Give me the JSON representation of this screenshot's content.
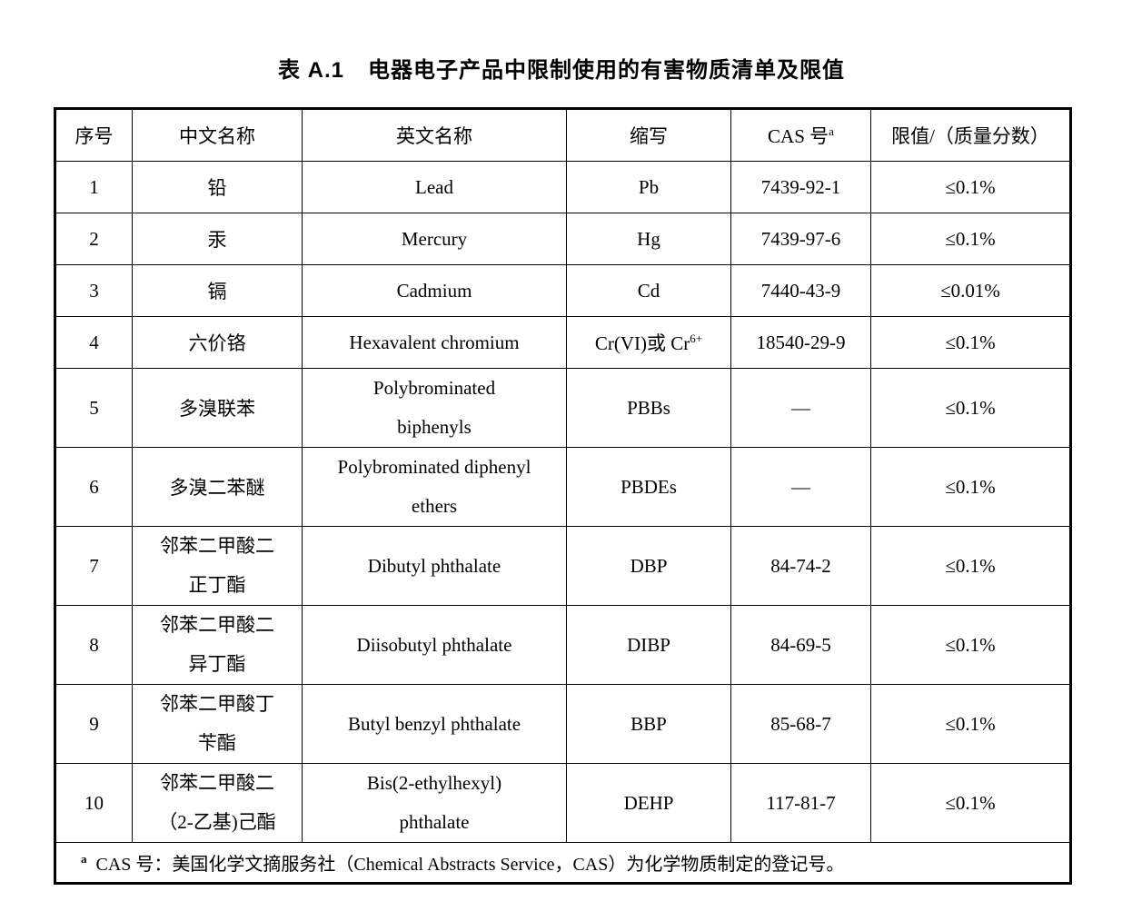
{
  "page": {
    "title_label": "表 A.1",
    "title_text": "电器电子产品中限制使用的有害物质清单及限值"
  },
  "table": {
    "headers": [
      "序号",
      "中文名称",
      "英文名称",
      "缩写",
      "CAS 号",
      "限值/（质量分数）"
    ],
    "cas_header_superscript": "a",
    "rows": [
      {
        "no": "1",
        "cn": [
          "铅"
        ],
        "en": [
          "Lead"
        ],
        "abbr": "Pb",
        "cas": "7439-92-1",
        "limit": "≤0.1%"
      },
      {
        "no": "2",
        "cn": [
          "汞"
        ],
        "en": [
          "Mercury"
        ],
        "abbr": "Hg",
        "cas": "7439-97-6",
        "limit": "≤0.1%"
      },
      {
        "no": "3",
        "cn": [
          "镉"
        ],
        "en": [
          "Cadmium"
        ],
        "abbr": "Cd",
        "cas": "7440-43-9",
        "limit": "≤0.01%"
      },
      {
        "no": "4",
        "cn": [
          "六价铬"
        ],
        "en": [
          "Hexavalent chromium"
        ],
        "abbr": "Cr(VI)或 Cr",
        "abbr_superscript": "6+",
        "cas": "18540-29-9",
        "limit": "≤0.1%"
      },
      {
        "no": "5",
        "cn": [
          "多溴联苯"
        ],
        "en": [
          "Polybrominated",
          "biphenyls"
        ],
        "abbr": "PBBs",
        "cas": "—",
        "limit": "≤0.1%"
      },
      {
        "no": "6",
        "cn": [
          "多溴二苯醚"
        ],
        "en": [
          "Polybrominated diphenyl",
          "ethers"
        ],
        "abbr": "PBDEs",
        "cas": "—",
        "limit": "≤0.1%"
      },
      {
        "no": "7",
        "cn": [
          "邻苯二甲酸二",
          "正丁酯"
        ],
        "en": [
          "Dibutyl phthalate"
        ],
        "abbr": "DBP",
        "cas": "84-74-2",
        "limit": "≤0.1%"
      },
      {
        "no": "8",
        "cn": [
          "邻苯二甲酸二",
          "异丁酯"
        ],
        "en": [
          "Diisobutyl phthalate"
        ],
        "abbr": "DIBP",
        "cas": "84-69-5",
        "limit": "≤0.1%"
      },
      {
        "no": "9",
        "cn": [
          "邻苯二甲酸丁",
          "苄酯"
        ],
        "en": [
          "Butyl benzyl phthalate"
        ],
        "abbr": "BBP",
        "cas": "85-68-7",
        "limit": "≤0.1%"
      },
      {
        "no": "10",
        "cn": [
          "邻苯二甲酸二",
          "（2-乙基)己酯"
        ],
        "en": [
          "Bis(2-ethylhexyl)",
          "phthalate"
        ],
        "abbr": "DEHP",
        "cas": "117-81-7",
        "limit": "≤0.1%"
      }
    ],
    "footnote_marker": "a",
    "footnote_text": "CAS 号：美国化学文摘服务社（Chemical Abstracts Service，CAS）为化学物质制定的登记号。"
  },
  "colors": {
    "text": "#000000",
    "border": "#000000",
    "background": "#ffffff"
  }
}
